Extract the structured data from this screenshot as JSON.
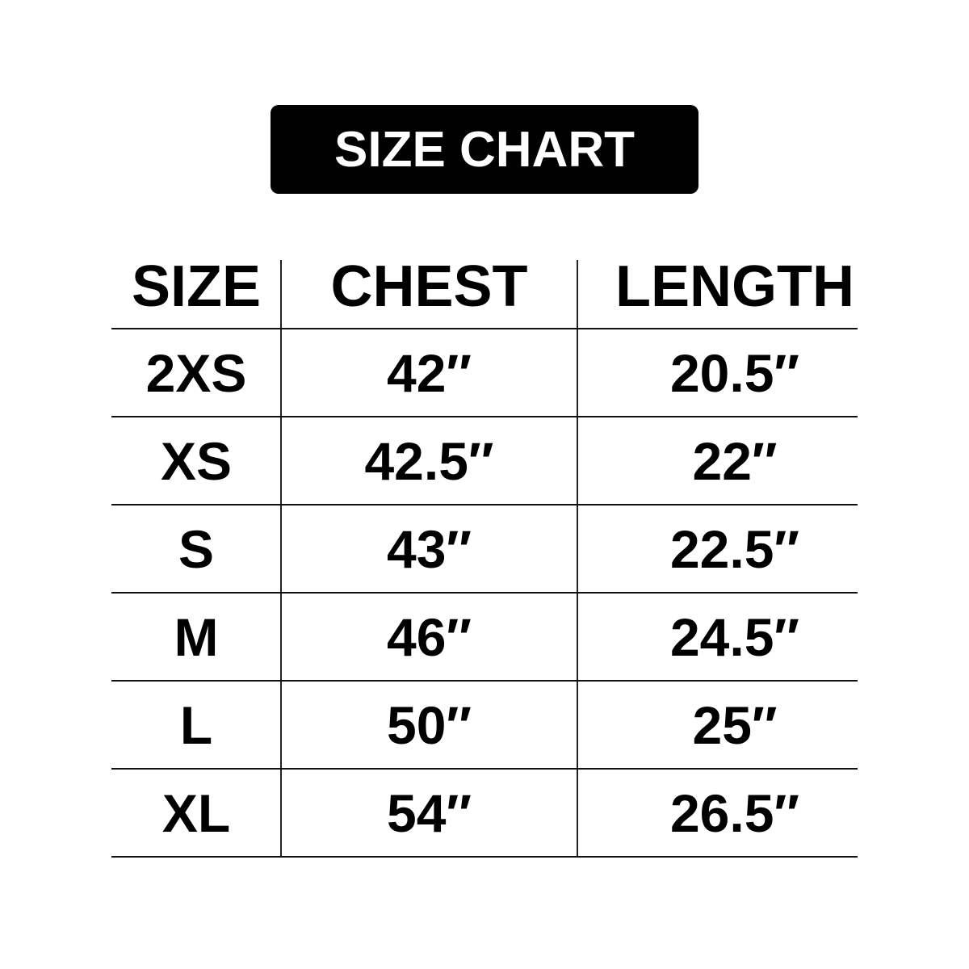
{
  "title": "SIZE CHART",
  "columns": [
    "SIZE",
    "CHEST",
    "LENGTH"
  ],
  "rows": [
    [
      "2XS",
      "42″",
      "20.5″"
    ],
    [
      "XS",
      "42.5″",
      "22″"
    ],
    [
      "S",
      "43″",
      "22.5″"
    ],
    [
      "M",
      "46″",
      "24.5″"
    ],
    [
      "L",
      "50″",
      "25″"
    ],
    [
      "XL",
      "54″",
      "26.5″"
    ]
  ]
}
